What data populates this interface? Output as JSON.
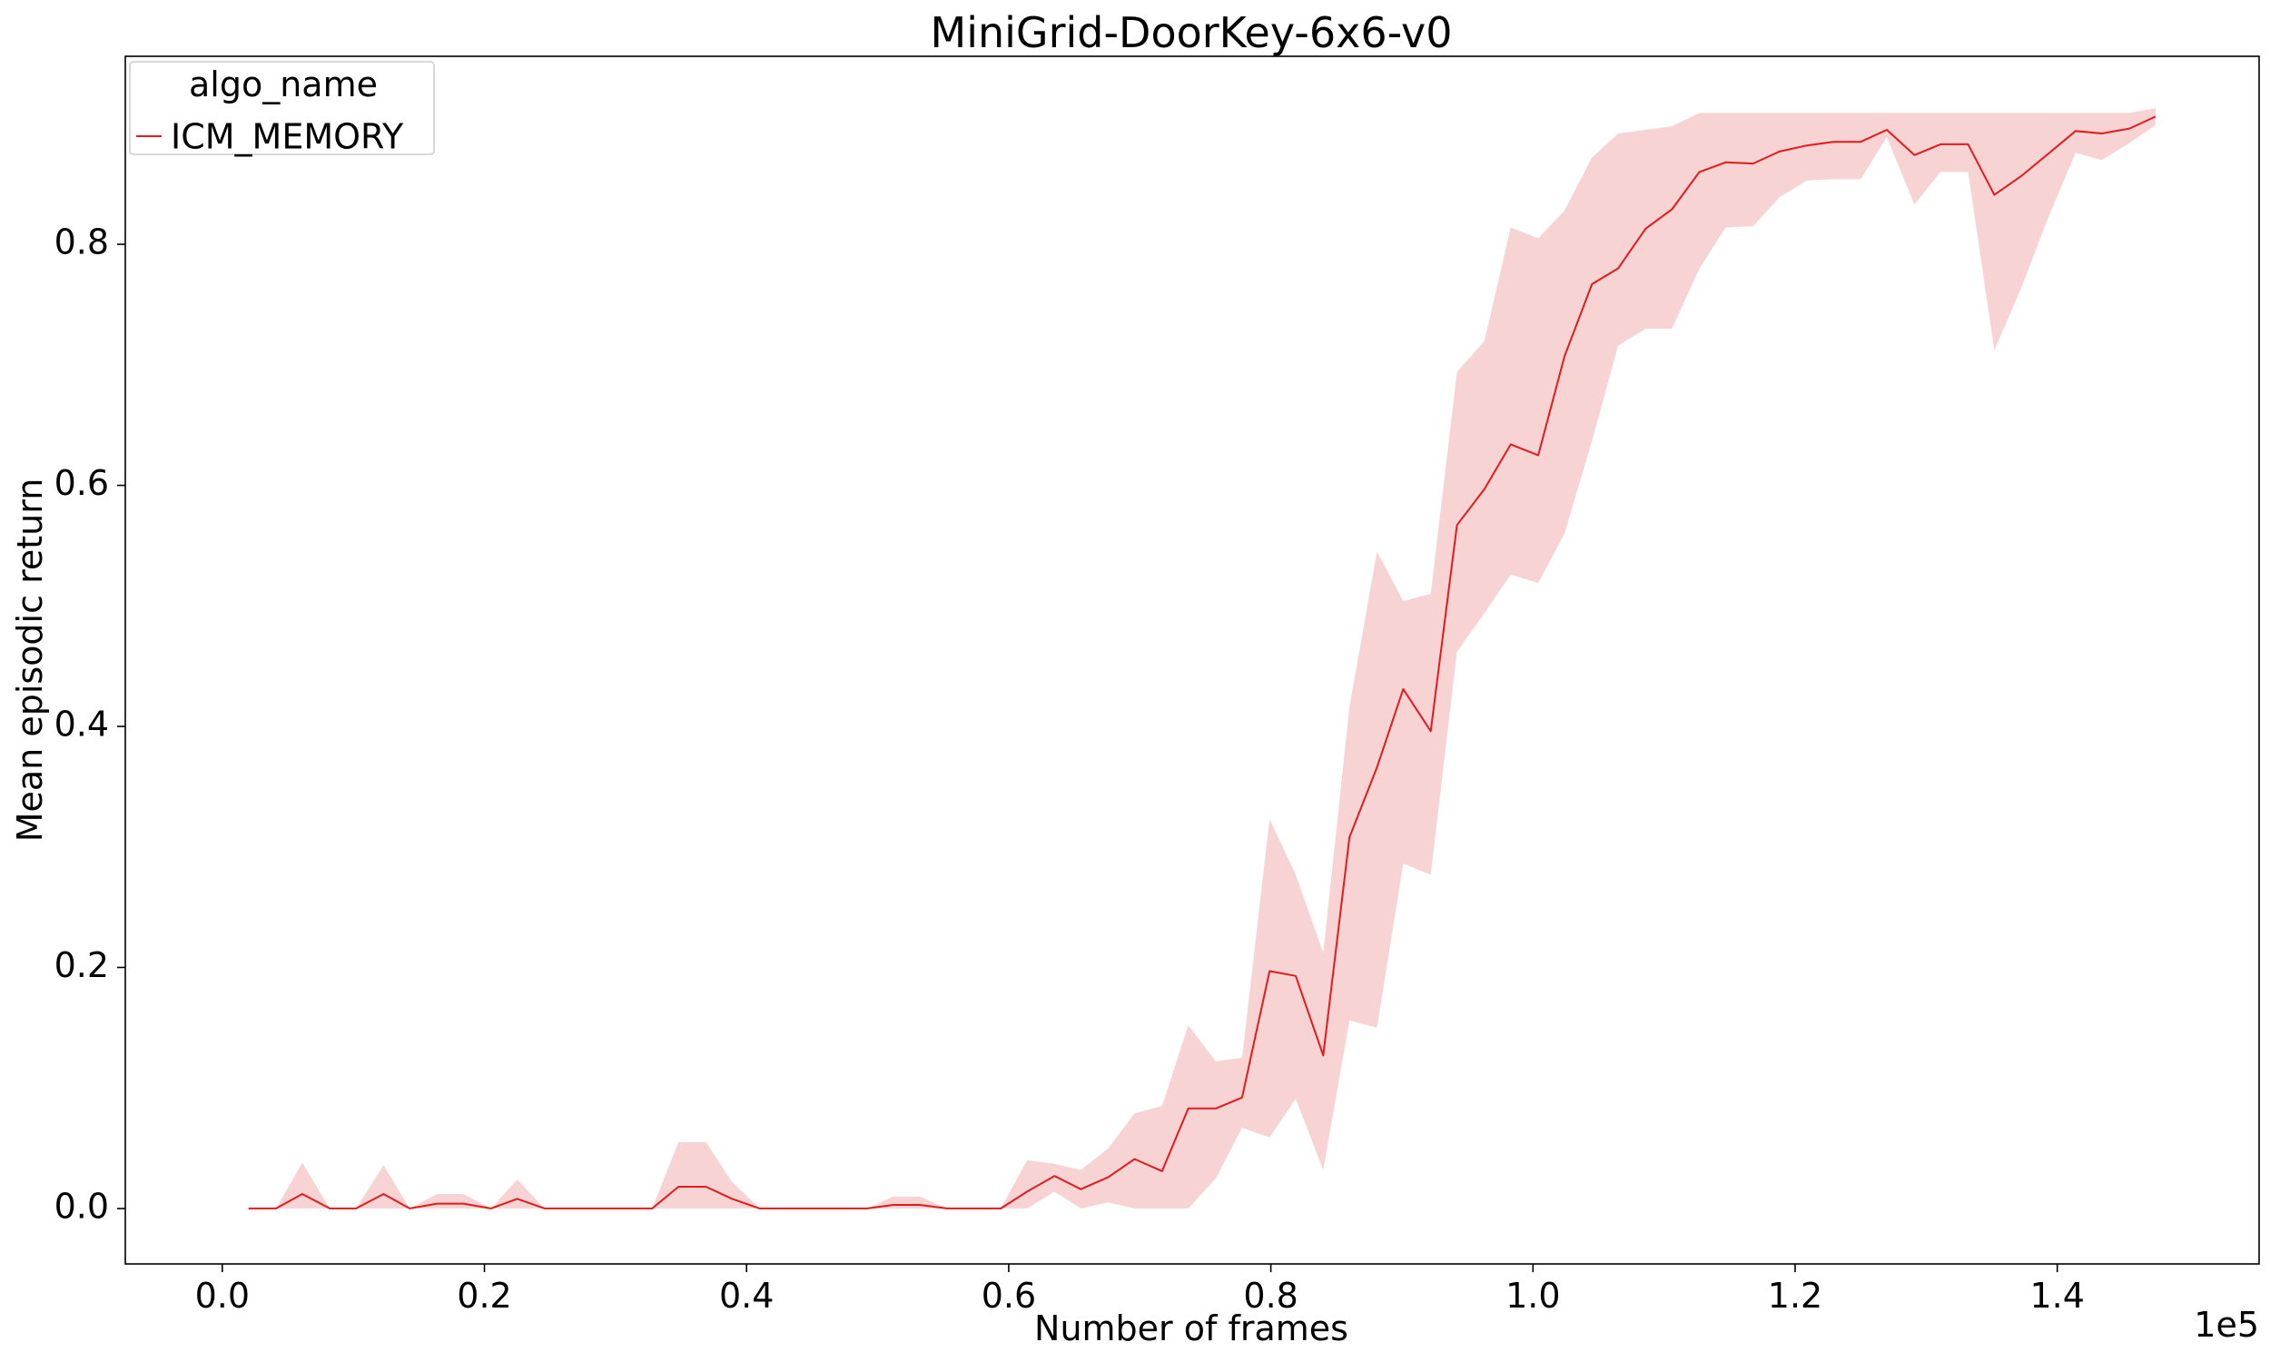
{
  "chart_data": {
    "type": "line",
    "title": "MiniGrid-DoorKey-6x6-v0",
    "xlabel": "Number of frames",
    "ylabel": "Mean episodic return",
    "x_scale_label": "1e5",
    "xlim": [
      -0.074,
      1.554
    ],
    "ylim": [
      -0.046,
      0.956
    ],
    "x_ticks": [
      0.0,
      0.2,
      0.4,
      0.6,
      0.8,
      1.0,
      1.2,
      1.4
    ],
    "x_tick_labels": [
      "0.0",
      "0.2",
      "0.4",
      "0.6",
      "0.8",
      "1.0",
      "1.2",
      "1.4"
    ],
    "y_ticks": [
      0.0,
      0.2,
      0.4,
      0.6,
      0.8
    ],
    "y_tick_labels": [
      "0.0",
      "0.2",
      "0.4",
      "0.6",
      "0.8"
    ],
    "grid": false,
    "legend": {
      "title": "algo_name",
      "placement": "top-left",
      "entries": [
        "ICM_MEMORY"
      ]
    },
    "colors": {
      "line": "#e31a1c",
      "band": "#f4b6b6"
    },
    "series": [
      {
        "name": "ICM_MEMORY",
        "x": [
          0.02,
          0.041,
          0.061,
          0.082,
          0.102,
          0.123,
          0.143,
          0.164,
          0.184,
          0.205,
          0.225,
          0.246,
          0.266,
          0.287,
          0.307,
          0.328,
          0.348,
          0.369,
          0.389,
          0.41,
          0.43,
          0.451,
          0.471,
          0.492,
          0.512,
          0.532,
          0.553,
          0.573,
          0.594,
          0.614,
          0.635,
          0.655,
          0.676,
          0.696,
          0.717,
          0.737,
          0.758,
          0.778,
          0.799,
          0.819,
          0.84,
          0.86,
          0.881,
          0.901,
          0.922,
          0.942,
          0.963,
          0.983,
          1.004,
          1.024,
          1.045,
          1.065,
          1.086,
          1.106,
          1.127,
          1.147,
          1.168,
          1.188,
          1.209,
          1.229,
          1.25,
          1.27,
          1.291,
          1.311,
          1.332,
          1.352,
          1.373,
          1.393,
          1.414,
          1.434,
          1.455,
          1.475
        ],
        "y": [
          0.0,
          0.0,
          0.012,
          0.0,
          0.0,
          0.012,
          0.0,
          0.004,
          0.004,
          0.0,
          0.008,
          0.0,
          0.0,
          0.0,
          0.0,
          0.0,
          0.018,
          0.018,
          0.008,
          0.0,
          0.0,
          0.0,
          0.0,
          0.0,
          0.003,
          0.003,
          0.0,
          0.0,
          0.0,
          0.014,
          0.027,
          0.016,
          0.026,
          0.041,
          0.031,
          0.083,
          0.083,
          0.092,
          0.197,
          0.193,
          0.127,
          0.308,
          0.366,
          0.431,
          0.396,
          0.567,
          0.597,
          0.634,
          0.625,
          0.707,
          0.767,
          0.78,
          0.813,
          0.829,
          0.86,
          0.868,
          0.867,
          0.877,
          0.882,
          0.885,
          0.885,
          0.895,
          0.874,
          0.883,
          0.883,
          0.841,
          0.857,
          0.875,
          0.894,
          0.892,
          0.896,
          0.906
        ],
        "lower": [
          0.0,
          0.0,
          0.0,
          0.0,
          0.0,
          0.0,
          0.0,
          0.0,
          0.0,
          0.0,
          0.0,
          0.0,
          0.0,
          0.0,
          0.0,
          0.0,
          0.0,
          0.0,
          0.0,
          0.0,
          0.0,
          0.0,
          0.0,
          0.0,
          0.0,
          0.0,
          0.0,
          0.0,
          0.0,
          0.0,
          0.014,
          0.0,
          0.005,
          0.0,
          0.0,
          0.0,
          0.025,
          0.067,
          0.059,
          0.091,
          0.032,
          0.156,
          0.15,
          0.286,
          0.277,
          0.462,
          0.494,
          0.526,
          0.519,
          0.56,
          0.637,
          0.716,
          0.73,
          0.73,
          0.78,
          0.814,
          0.815,
          0.839,
          0.853,
          0.854,
          0.854,
          0.889,
          0.833,
          0.86,
          0.86,
          0.712,
          0.765,
          0.822,
          0.876,
          0.87,
          0.884,
          0.899
        ],
        "upper": [
          0.0,
          0.0,
          0.038,
          0.0,
          0.0,
          0.036,
          0.0,
          0.012,
          0.012,
          0.0,
          0.024,
          0.0,
          0.0,
          0.0,
          0.0,
          0.0,
          0.055,
          0.055,
          0.022,
          0.0,
          0.0,
          0.0,
          0.0,
          0.0,
          0.01,
          0.01,
          0.0,
          0.0,
          0.0,
          0.04,
          0.037,
          0.032,
          0.05,
          0.079,
          0.085,
          0.152,
          0.122,
          0.125,
          0.323,
          0.277,
          0.212,
          0.416,
          0.545,
          0.504,
          0.51,
          0.694,
          0.72,
          0.814,
          0.805,
          0.828,
          0.872,
          0.892,
          0.895,
          0.898,
          0.909,
          0.909,
          0.909,
          0.909,
          0.909,
          0.909,
          0.909,
          0.909,
          0.909,
          0.909,
          0.909,
          0.909,
          0.909,
          0.909,
          0.909,
          0.909,
          0.909,
          0.913
        ]
      }
    ]
  }
}
